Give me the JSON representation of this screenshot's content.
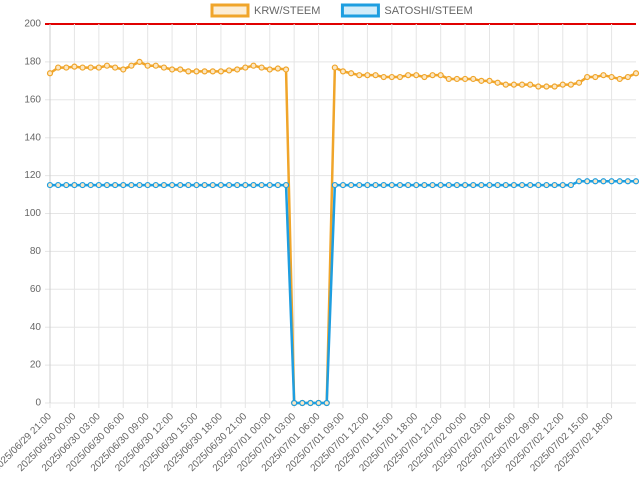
{
  "chart_data": {
    "type": "line",
    "categories": [
      "2025/06/29 21:00",
      null,
      null,
      "2025/06/30 00:00",
      null,
      null,
      "2025/06/30 03:00",
      null,
      null,
      "2025/06/30 06:00",
      null,
      null,
      "2025/06/30 09:00",
      null,
      null,
      "2025/06/30 12:00",
      null,
      null,
      "2025/06/30 15:00",
      null,
      null,
      "2025/06/30 18:00",
      null,
      null,
      "2025/06/30 21:00",
      null,
      null,
      "2025/07/01 00:00",
      null,
      null,
      "2025/07/01 03:00",
      null,
      null,
      "2025/07/01 06:00",
      null,
      null,
      "2025/07/01 09:00",
      null,
      null,
      "2025/07/01 12:00",
      null,
      null,
      "2025/07/01 15:00",
      null,
      null,
      "2025/07/01 18:00",
      null,
      null,
      "2025/07/01 21:00",
      null,
      null,
      "2025/07/02 00:00",
      null,
      null,
      "2025/07/02 03:00",
      null,
      null,
      "2025/07/02 06:00",
      null,
      null,
      "2025/07/02 09:00",
      null,
      null,
      "2025/07/02 12:00",
      null,
      null,
      "2025/07/02 15:00",
      null,
      null,
      "2025/07/02 18:00",
      null,
      null,
      null
    ],
    "series": [
      {
        "name": "KRW/STEEM",
        "color": "#f0a52a",
        "values": [
          174,
          177,
          177,
          177.5,
          177,
          177,
          177,
          178,
          177,
          176,
          178,
          180,
          178,
          178,
          177,
          176,
          176,
          175,
          175,
          175,
          175,
          175,
          175.5,
          176,
          177,
          178,
          177,
          176,
          176.5,
          176,
          0,
          0,
          0,
          0,
          0,
          177,
          175,
          174,
          173,
          173,
          173,
          172,
          172,
          172,
          173,
          173,
          172,
          173,
          173,
          171,
          171,
          171,
          171,
          170,
          170,
          169,
          168,
          168,
          168,
          168,
          167,
          167,
          167,
          168,
          168,
          169,
          172,
          172,
          173,
          172,
          171,
          172,
          174
        ]
      },
      {
        "name": "SATOSHI/STEEM",
        "color": "#1e9ee0",
        "values": [
          115,
          115,
          115,
          115,
          115,
          115,
          115,
          115,
          115,
          115,
          115,
          115,
          115,
          115,
          115,
          115,
          115,
          115,
          115,
          115,
          115,
          115,
          115,
          115,
          115,
          115,
          115,
          115,
          115,
          115,
          0,
          0,
          0,
          0,
          0,
          115,
          115,
          115,
          115,
          115,
          115,
          115,
          115,
          115,
          115,
          115,
          115,
          115,
          115,
          115,
          115,
          115,
          115,
          115,
          115,
          115,
          115,
          115,
          115,
          115,
          115,
          115,
          115,
          115,
          115,
          117,
          117,
          117,
          117,
          117,
          117,
          117,
          117
        ]
      }
    ],
    "ylim": [
      0,
      200
    ],
    "yticks": [
      0,
      20,
      40,
      60,
      80,
      100,
      120,
      140,
      160,
      180,
      200
    ],
    "grid": true
  }
}
